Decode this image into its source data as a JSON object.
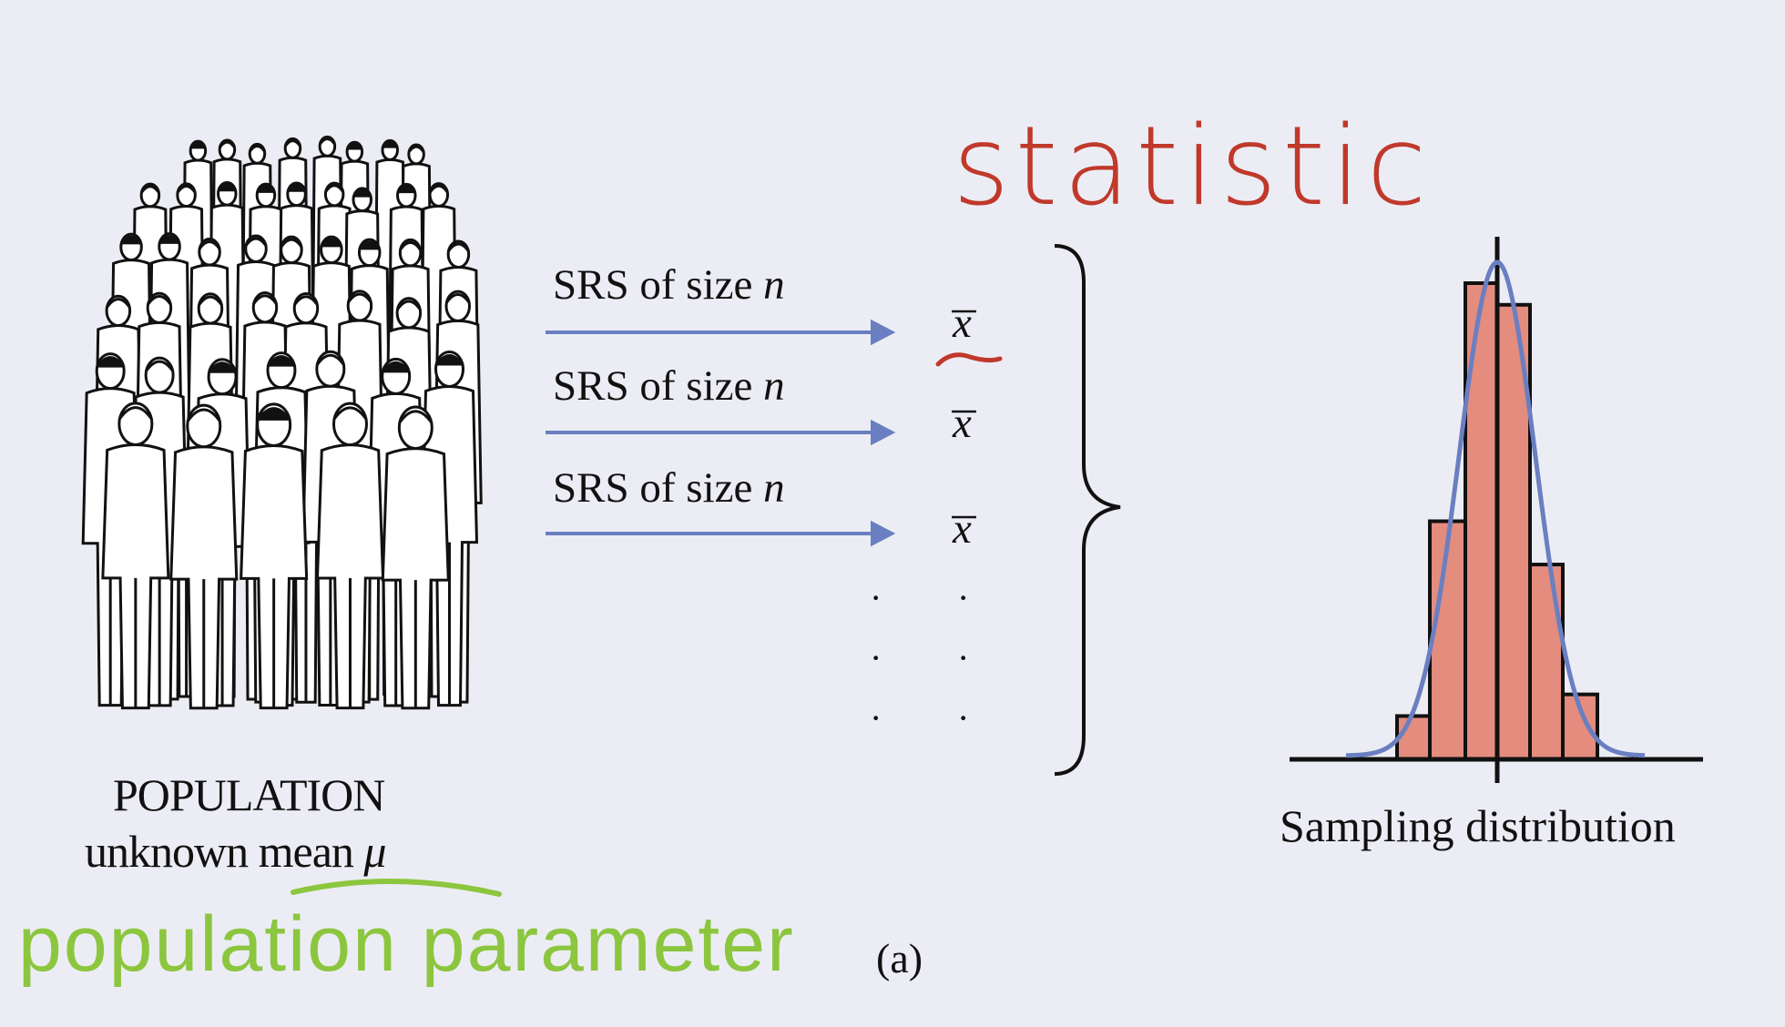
{
  "population": {
    "title": "POPULATION",
    "subtitle_prefix": "unknown",
    "subtitle_mean": "mean",
    "subtitle_symbol": "μ"
  },
  "annotations": {
    "parameter": "population parameter",
    "statistic": "statistic",
    "parameter_color": "#8cc63f",
    "statistic_color": "#c0392b"
  },
  "samples": [
    {
      "label_prefix": "SRS of size",
      "label_var": "n",
      "statistic": "x"
    },
    {
      "label_prefix": "SRS of size",
      "label_var": "n",
      "statistic": "x"
    },
    {
      "label_prefix": "SRS of size",
      "label_var": "n",
      "statistic": "x"
    }
  ],
  "ellipsis": "·",
  "sampling_distribution": {
    "label": "Sampling distribution"
  },
  "panel_label": "(a)",
  "colors": {
    "background": "#ecedf4",
    "arrow": "#6a7fc1",
    "bars": "#e48c7e",
    "curve": "#6a7fc1"
  },
  "chart_data": {
    "type": "bar",
    "values": [
      2,
      11,
      22,
      21,
      9,
      3
    ],
    "overlay": "normal-curve",
    "center_line": "mean"
  }
}
